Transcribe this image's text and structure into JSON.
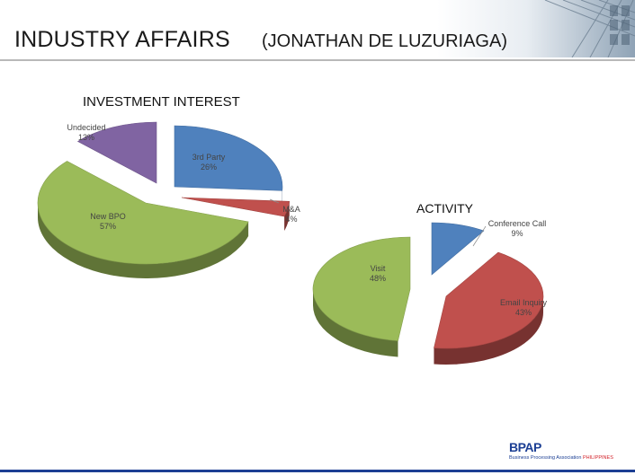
{
  "header": {
    "title": "INDUSTRY AFFAIRS",
    "subtitle": "(JONATHAN DE LUZURIAGA)"
  },
  "logo": {
    "mark": "BPAP",
    "text": "Business Processing Association",
    "text_accent": "PHILIPPINES"
  },
  "colors": {
    "blue": "#4f81bd",
    "red": "#c0504d",
    "green": "#9bbb59",
    "purple": "#8064a2",
    "brand_blue": "#1c3f94",
    "brand_red": "#d21f27"
  },
  "chart_data": [
    {
      "type": "pie",
      "title": "INVESTMENT INTEREST",
      "slices": [
        {
          "label": "3rd Party",
          "value": 26,
          "display": "26%"
        },
        {
          "label": "M&A",
          "value": 4,
          "display": "4%"
        },
        {
          "label": "New BPO",
          "value": 57,
          "display": "57%"
        },
        {
          "label": "Undecided",
          "value": 13,
          "display": "13%"
        }
      ]
    },
    {
      "type": "pie",
      "title": "ACTIVITY",
      "slices": [
        {
          "label": "Conference Call",
          "value": 9,
          "display": "9%"
        },
        {
          "label": "Email Inquiry",
          "value": 43,
          "display": "43%"
        },
        {
          "label": "Visit",
          "value": 48,
          "display": "48%"
        }
      ]
    }
  ]
}
